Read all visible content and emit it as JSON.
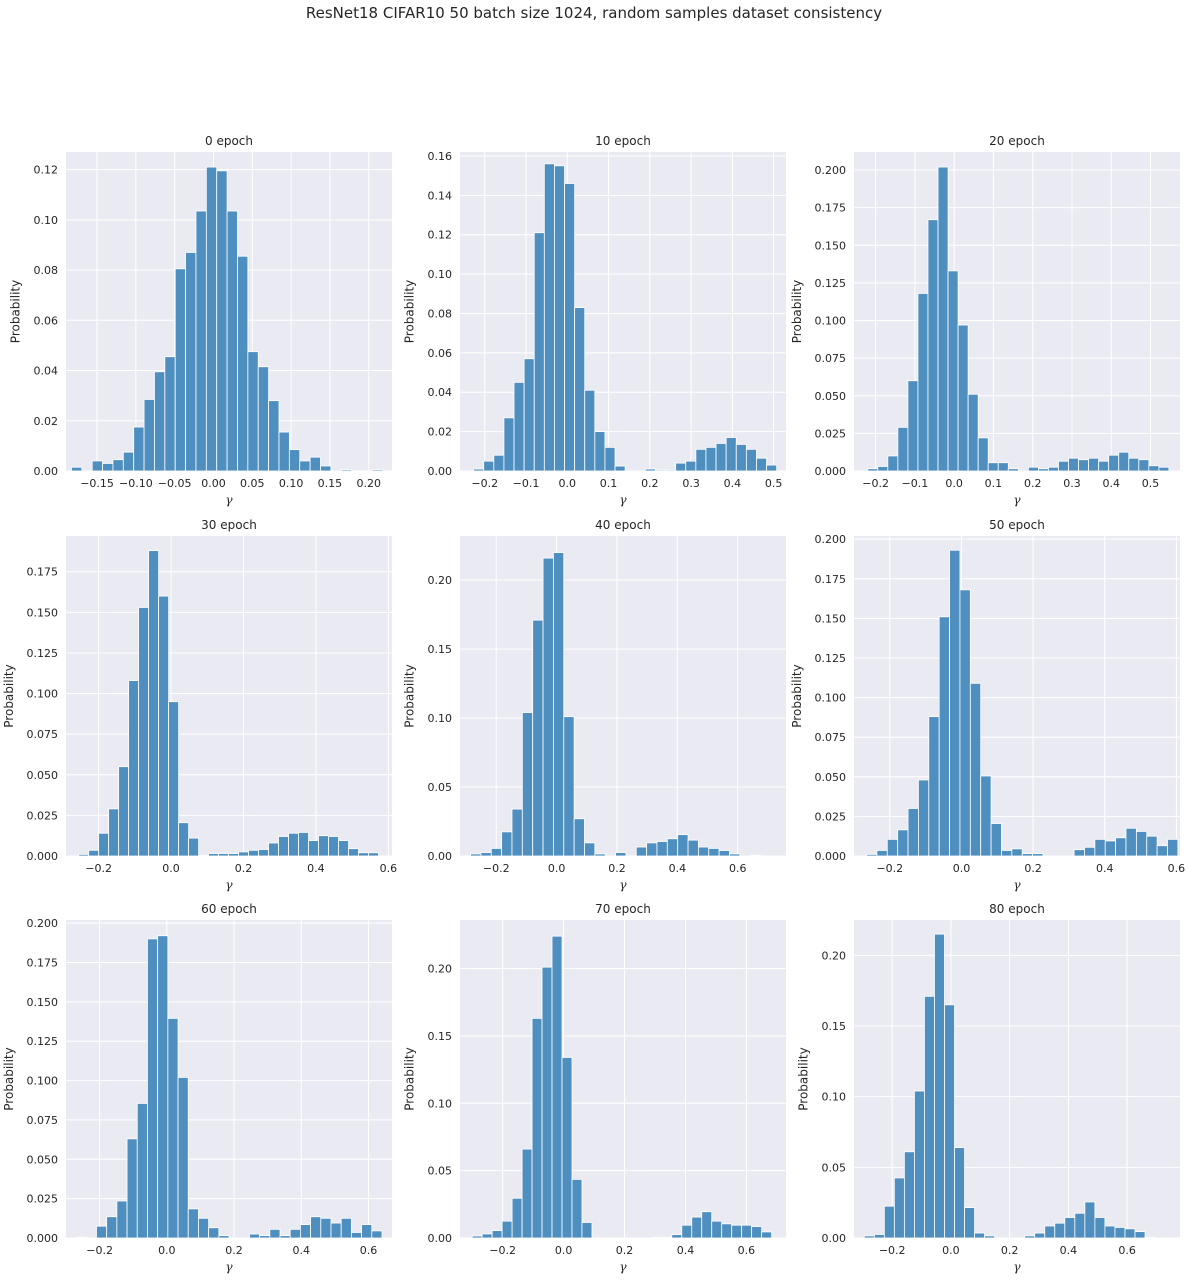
{
  "figure_title": "ResNet18 CIFAR10 50 batch size 1024, random samples dataset consistency",
  "colors": {
    "bar": "#4f8fc0",
    "bar_edge": "#ffffff",
    "axes_bg": "#eaeaf2",
    "grid": "#ffffff"
  },
  "chart_data": [
    {
      "type": "bar",
      "title": "0 epoch",
      "xlabel": "γ",
      "ylabel": "Probability",
      "xlim": [
        -0.19,
        0.23
      ],
      "ylim": [
        0,
        0.127
      ],
      "xticks": [
        -0.15,
        -0.1,
        -0.05,
        0.0,
        0.05,
        0.1,
        0.15,
        0.2
      ],
      "xtick_labels": [
        "−0.15",
        "−0.10",
        "−0.05",
        "0.00",
        "0.05",
        "0.10",
        "0.15",
        "0.20"
      ],
      "yticks": [
        0,
        0.02,
        0.04,
        0.06,
        0.08,
        0.1,
        0.12
      ],
      "ytick_labels": [
        "0.00",
        "0.02",
        "0.04",
        "0.06",
        "0.08",
        "0.10",
        "0.12"
      ],
      "bin_start": -0.183,
      "bin_width": 0.01337,
      "values": [
        0.0015,
        0,
        0.004,
        0.003,
        0.0045,
        0.0075,
        0.0175,
        0.0285,
        0.0395,
        0.0455,
        0.0805,
        0.087,
        0.1035,
        0.121,
        0.1195,
        0.1035,
        0.0855,
        0.0475,
        0.0415,
        0.028,
        0.0155,
        0.0085,
        0.004,
        0.0055,
        0.002,
        0,
        0.0005,
        0,
        0,
        0.0005
      ]
    },
    {
      "type": "bar",
      "title": "10 epoch",
      "xlabel": "γ",
      "ylabel": "Probability",
      "xlim": [
        -0.26,
        0.53
      ],
      "ylim": [
        0,
        0.162
      ],
      "xticks": [
        -0.2,
        -0.1,
        0.0,
        0.1,
        0.2,
        0.3,
        0.4,
        0.5
      ],
      "xtick_labels": [
        "−0.2",
        "−0.1",
        "0.0",
        "0.1",
        "0.2",
        "0.3",
        "0.4",
        "0.5"
      ],
      "yticks": [
        0,
        0.02,
        0.04,
        0.06,
        0.08,
        0.1,
        0.12,
        0.14,
        0.16
      ],
      "ytick_labels": [
        "0.00",
        "0.02",
        "0.04",
        "0.06",
        "0.08",
        "0.10",
        "0.12",
        "0.14",
        "0.16"
      ],
      "bin_start": -0.227,
      "bin_width": 0.02448,
      "values": [
        0.001,
        0.005,
        0.008,
        0.027,
        0.045,
        0.057,
        0.121,
        0.156,
        0.155,
        0.146,
        0.083,
        0.041,
        0.02,
        0.012,
        0.0025,
        0,
        0,
        0.001,
        0.0005,
        0.0005,
        0.004,
        0.005,
        0.011,
        0.012,
        0.014,
        0.017,
        0.0135,
        0.011,
        0.0065,
        0.003
      ]
    },
    {
      "type": "bar",
      "title": "20 epoch",
      "xlabel": "γ",
      "ylabel": "Probability",
      "xlim": [
        -0.255,
        0.575
      ],
      "ylim": [
        0,
        0.212
      ],
      "xticks": [
        -0.2,
        -0.1,
        0.0,
        0.1,
        0.2,
        0.3,
        0.4,
        0.5
      ],
      "xtick_labels": [
        "−0.2",
        "−0.1",
        "0.0",
        "0.1",
        "0.2",
        "0.3",
        "0.4",
        "0.5"
      ],
      "yticks": [
        0,
        0.025,
        0.05,
        0.075,
        0.1,
        0.125,
        0.15,
        0.175,
        0.2
      ],
      "ytick_labels": [
        "0.000",
        "0.025",
        "0.050",
        "0.075",
        "0.100",
        "0.125",
        "0.150",
        "0.175",
        "0.200"
      ],
      "bin_start": -0.22,
      "bin_width": 0.02556,
      "values": [
        0.0015,
        0.003,
        0.01,
        0.029,
        0.06,
        0.118,
        0.167,
        0.202,
        0.133,
        0.097,
        0.051,
        0.022,
        0.0055,
        0.0055,
        0.0015,
        0,
        0.0025,
        0.0015,
        0.0025,
        0.0065,
        0.0085,
        0.0075,
        0.0085,
        0.0065,
        0.0105,
        0.0125,
        0.0085,
        0.0075,
        0.0035,
        0.0025
      ]
    },
    {
      "type": "bar",
      "title": "30 epoch",
      "xlabel": "γ",
      "ylabel": "Probability",
      "xlim": [
        -0.29,
        0.61
      ],
      "ylim": [
        0,
        0.197
      ],
      "xticks": [
        -0.2,
        0.0,
        0.2,
        0.4,
        0.6
      ],
      "xtick_labels": [
        "−0.2",
        "0.0",
        "0.2",
        "0.4",
        "0.6"
      ],
      "yticks": [
        0,
        0.025,
        0.05,
        0.075,
        0.1,
        0.125,
        0.15,
        0.175
      ],
      "ytick_labels": [
        "0.000",
        "0.025",
        "0.050",
        "0.075",
        "0.100",
        "0.125",
        "0.150",
        "0.175"
      ],
      "bin_start": -0.255,
      "bin_width": 0.02759,
      "values": [
        0.001,
        0.0035,
        0.014,
        0.029,
        0.055,
        0.108,
        0.153,
        0.188,
        0.16,
        0.095,
        0.0205,
        0.011,
        0.0005,
        0.0015,
        0.0015,
        0.0015,
        0.0025,
        0.0035,
        0.004,
        0.008,
        0.012,
        0.014,
        0.0145,
        0.0095,
        0.0125,
        0.012,
        0.0095,
        0.0045,
        0.002,
        0.002
      ]
    },
    {
      "type": "bar",
      "title": "40 epoch",
      "xlabel": "γ",
      "ylabel": "Probability",
      "xlim": [
        -0.32,
        0.76
      ],
      "ylim": [
        0,
        0.232
      ],
      "xticks": [
        -0.2,
        0.0,
        0.2,
        0.4,
        0.6
      ],
      "xtick_labels": [
        "−0.2",
        "0.0",
        "0.2",
        "0.4",
        "0.6"
      ],
      "yticks": [
        0,
        0.05,
        0.1,
        0.15,
        0.2
      ],
      "ytick_labels": [
        "0.00",
        "0.05",
        "0.10",
        "0.15",
        "0.20"
      ],
      "bin_start": -0.285,
      "bin_width": 0.03431,
      "values": [
        0.0015,
        0.0025,
        0.0055,
        0.0175,
        0.034,
        0.104,
        0.171,
        0.216,
        0.22,
        0.101,
        0.027,
        0.0095,
        0.0015,
        0,
        0.0025,
        0,
        0.0065,
        0.0095,
        0.0105,
        0.0125,
        0.0155,
        0.0115,
        0.0065,
        0.0055,
        0.004,
        0.0015,
        0,
        0.0005,
        0,
        0
      ]
    },
    {
      "type": "bar",
      "title": "50 epoch",
      "xlabel": "γ",
      "ylabel": "Probability",
      "xlim": [
        -0.3,
        0.61
      ],
      "ylim": [
        0,
        0.202
      ],
      "xticks": [
        -0.2,
        0.0,
        0.2,
        0.4,
        0.6
      ],
      "xtick_labels": [
        "−0.2",
        "0.0",
        "0.2",
        "0.4",
        "0.6"
      ],
      "yticks": [
        0,
        0.025,
        0.05,
        0.075,
        0.1,
        0.125,
        0.15,
        0.175,
        0.2
      ],
      "ytick_labels": [
        "0.000",
        "0.025",
        "0.050",
        "0.075",
        "0.100",
        "0.125",
        "0.150",
        "0.175",
        "0.200"
      ],
      "bin_start": -0.265,
      "bin_width": 0.02897,
      "values": [
        0.001,
        0.0035,
        0.0105,
        0.0165,
        0.03,
        0.048,
        0.088,
        0.151,
        0.193,
        0.168,
        0.109,
        0.0505,
        0.0205,
        0.0035,
        0.0045,
        0.0015,
        0.0015,
        0,
        0,
        0,
        0.004,
        0.0055,
        0.0105,
        0.0095,
        0.0115,
        0.0175,
        0.0155,
        0.0125,
        0.0065,
        0.0105
      ]
    },
    {
      "type": "bar",
      "title": "60 epoch",
      "xlabel": "γ",
      "ylabel": "Probability",
      "xlim": [
        -0.3,
        0.67
      ],
      "ylim": [
        0,
        0.202
      ],
      "xticks": [
        -0.2,
        0.0,
        0.2,
        0.4,
        0.6
      ],
      "xtick_labels": [
        "−0.2",
        "0.0",
        "0.2",
        "0.4",
        "0.6"
      ],
      "yticks": [
        0,
        0.025,
        0.05,
        0.075,
        0.1,
        0.125,
        0.15,
        0.175,
        0.2
      ],
      "ytick_labels": [
        "0.000",
        "0.025",
        "0.050",
        "0.075",
        "0.100",
        "0.125",
        "0.150",
        "0.175",
        "0.200"
      ],
      "bin_start": -0.27,
      "bin_width": 0.03034,
      "values": [
        0.0005,
        0,
        0.0075,
        0.0135,
        0.0235,
        0.063,
        0.0855,
        0.19,
        0.192,
        0.1395,
        0.102,
        0.0185,
        0.0125,
        0.0065,
        0.0015,
        0,
        0,
        0.0025,
        0.0015,
        0.0055,
        0.0015,
        0.0055,
        0.0085,
        0.0135,
        0.0125,
        0.0095,
        0.0125,
        0.0035,
        0.0085,
        0.0045
      ]
    },
    {
      "type": "bar",
      "title": "70 epoch",
      "xlabel": "γ",
      "ylabel": "Probability",
      "xlim": [
        -0.34,
        0.73
      ],
      "ylim": [
        0,
        0.236
      ],
      "xticks": [
        -0.2,
        0.0,
        0.2,
        0.4,
        0.6
      ],
      "xtick_labels": [
        "−0.2",
        "0.0",
        "0.2",
        "0.4",
        "0.6"
      ],
      "yticks": [
        0,
        0.05,
        0.1,
        0.15,
        0.2
      ],
      "ytick_labels": [
        "0.00",
        "0.05",
        "0.10",
        "0.15",
        "0.20"
      ],
      "bin_start": -0.3,
      "bin_width": 0.03276,
      "values": [
        0.0015,
        0.003,
        0.0055,
        0.0125,
        0.0295,
        0.066,
        0.163,
        0.201,
        0.224,
        0.134,
        0.0435,
        0.0115,
        0,
        0,
        0,
        0,
        0,
        0,
        0.0005,
        0.0005,
        0.0025,
        0.0095,
        0.0155,
        0.0195,
        0.0125,
        0.0105,
        0.0095,
        0.0095,
        0.0085,
        0.0045
      ]
    },
    {
      "type": "bar",
      "title": "80 epoch",
      "xlabel": "γ",
      "ylabel": "Probability",
      "xlim": [
        -0.33,
        0.78
      ],
      "ylim": [
        0,
        0.225
      ],
      "xticks": [
        -0.2,
        0.0,
        0.2,
        0.4,
        0.6
      ],
      "xtick_labels": [
        "−0.2",
        "0.0",
        "0.2",
        "0.4",
        "0.6"
      ],
      "yticks": [
        0,
        0.05,
        0.1,
        0.15,
        0.2
      ],
      "ytick_labels": [
        "0.00",
        "0.05",
        "0.10",
        "0.15",
        "0.20"
      ],
      "bin_start": -0.295,
      "bin_width": 0.03414,
      "values": [
        0.0015,
        0.0025,
        0.0225,
        0.0425,
        0.061,
        0.104,
        0.171,
        0.215,
        0.165,
        0.064,
        0.0215,
        0.0035,
        0.0015,
        0,
        0,
        0,
        0.0015,
        0.0035,
        0.0085,
        0.0105,
        0.0145,
        0.0175,
        0.0255,
        0.0145,
        0.0085,
        0.0075,
        0.0065,
        0.0045,
        0.0005,
        0
      ]
    }
  ]
}
